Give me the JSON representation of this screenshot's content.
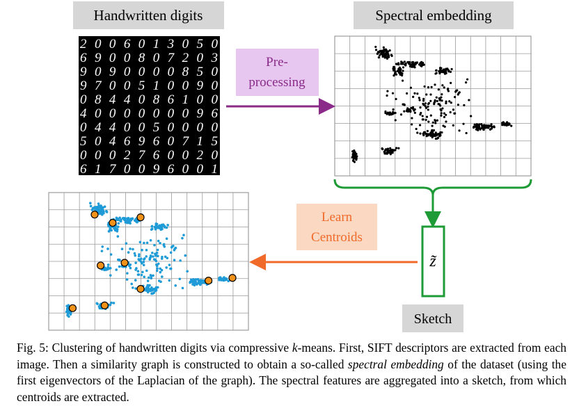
{
  "figure": {
    "digits_label": "Handwritten digits",
    "embedding_label": "Spectral embedding",
    "preprocessing_label": [
      "Pre-",
      "processing"
    ],
    "learn_label": [
      "Learn",
      "Centroids"
    ],
    "sketch_symbol": "z̃",
    "sketch_label": "Sketch",
    "digit_rows": [
      "2006013050",
      "6900807203",
      "9090000850",
      "9700510090",
      "0844086100",
      "4000000096",
      "0440050000",
      "5046960715",
      "0002760020",
      "6170096001"
    ]
  },
  "caption": {
    "label": "Fig. 5:",
    "part1": "Clustering of handwritten digits via compressive",
    "k": "k",
    "part2": "-means. First, SIFT descriptors are extracted from each image. Then a similarity graph is constructed to obtain a so-called",
    "spectral_embedding": "spectral embedding",
    "part3": "of the dataset (using the first eigenvectors of the Laplacian of the graph). The spectral features are aggregated into a sketch, from which centroids are extracted."
  }
}
